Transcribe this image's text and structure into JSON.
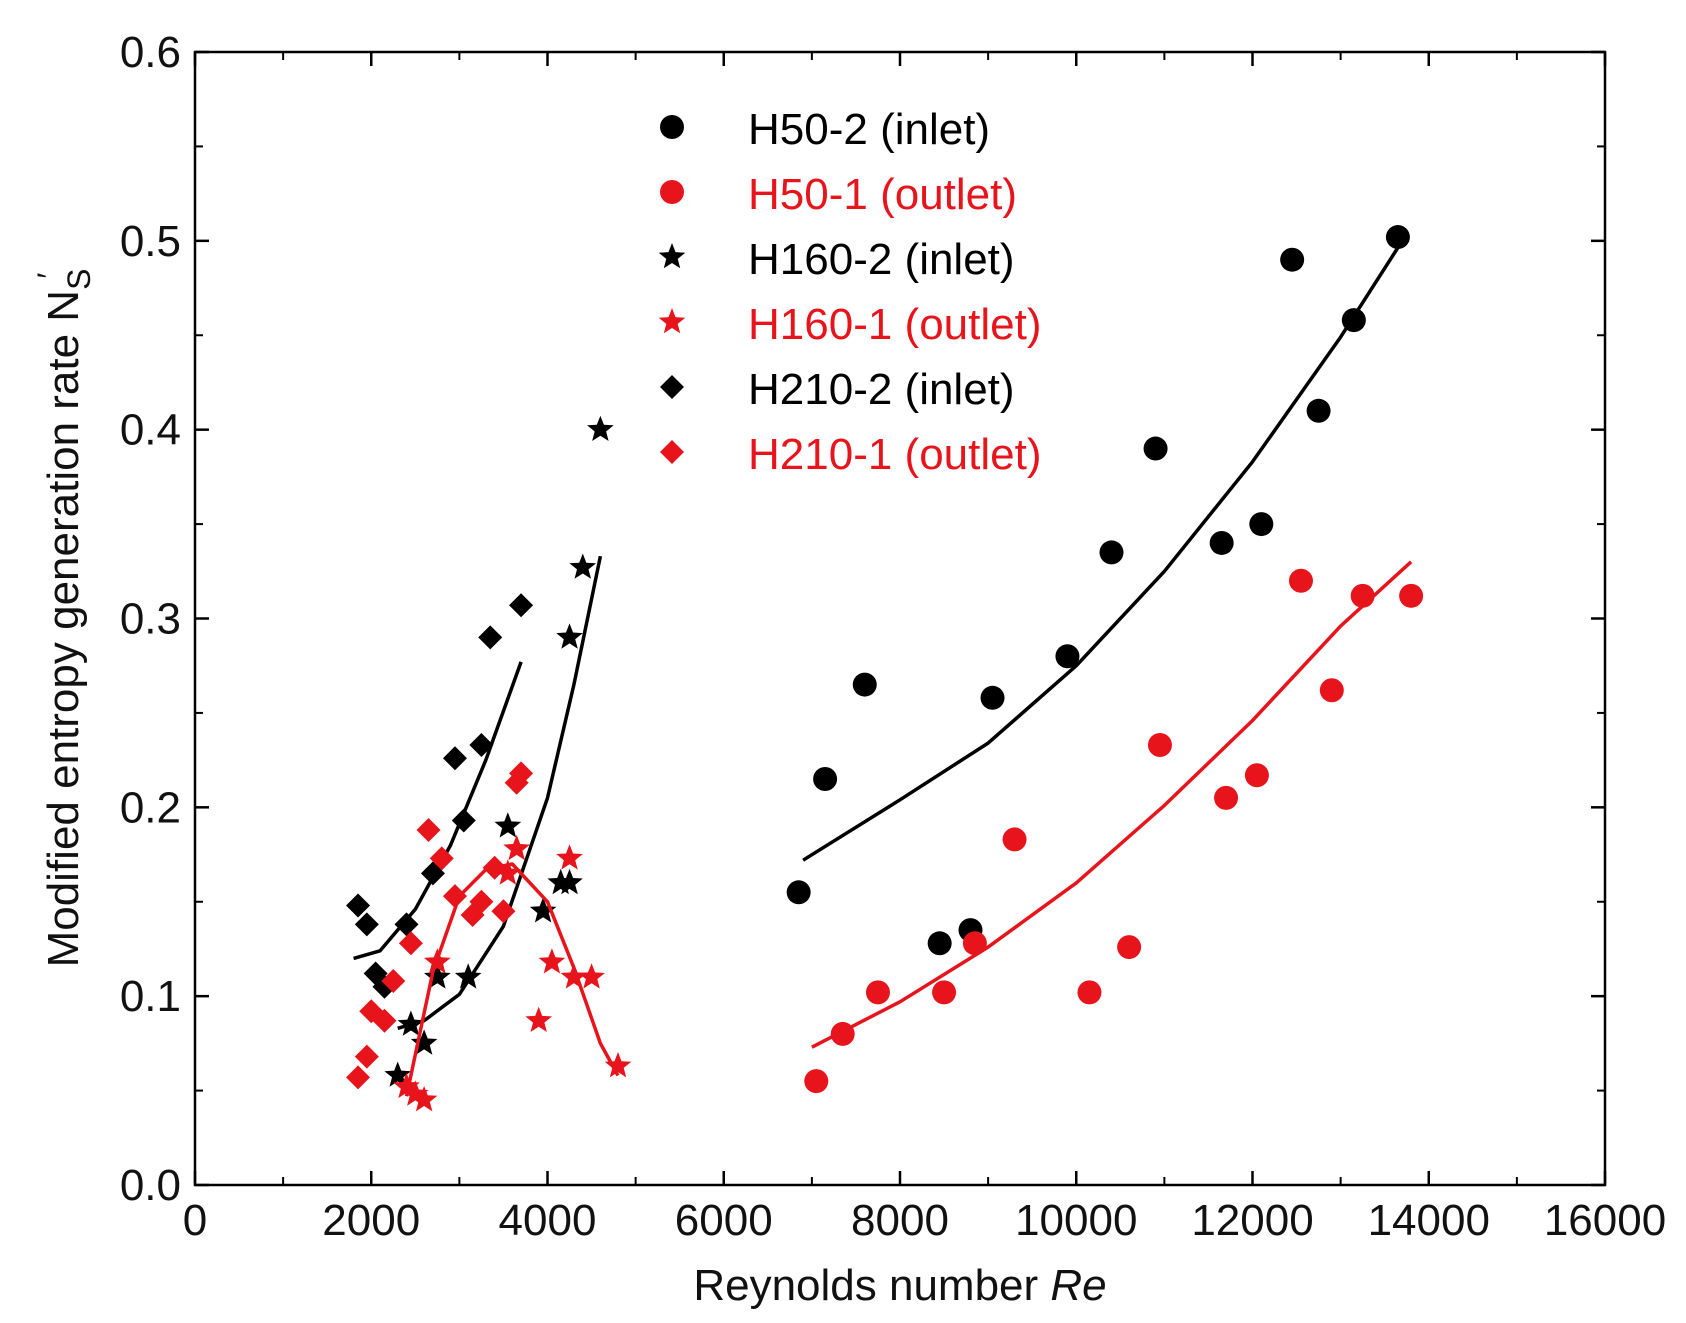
{
  "chart_data": {
    "type": "scatter",
    "xlabel": "Reynolds number ",
    "xlabel_italic": "Re",
    "ylabel": "Modified entropy generation rate N",
    "ylabel_sub": "S",
    "ylabel_prime": "′",
    "xlim": [
      0,
      16000
    ],
    "ylim": [
      0,
      0.6
    ],
    "x_ticks": [
      0,
      2000,
      4000,
      6000,
      8000,
      10000,
      12000,
      14000,
      16000
    ],
    "x_tick_labels": [
      "0",
      "2000",
      "4000",
      "6000",
      "8000",
      "10000",
      "12000",
      "14000",
      "16000"
    ],
    "y_ticks": [
      0,
      0.1,
      0.2,
      0.3,
      0.4,
      0.5,
      0.6
    ],
    "y_tick_labels": [
      "0.0",
      "0.1",
      "0.2",
      "0.3",
      "0.4",
      "0.5",
      "0.6"
    ],
    "grid": false,
    "legend_position": "top-center",
    "colors": {
      "black": "#000000",
      "red": "#e8141c"
    },
    "series": [
      {
        "name": "H50-2  (inlet)",
        "marker": "circle",
        "color": "#000000",
        "points": [
          [
            6850,
            0.155
          ],
          [
            7150,
            0.215
          ],
          [
            7600,
            0.265
          ],
          [
            8450,
            0.128
          ],
          [
            8800,
            0.135
          ],
          [
            9050,
            0.258
          ],
          [
            9900,
            0.28
          ],
          [
            10400,
            0.335
          ],
          [
            10900,
            0.39
          ],
          [
            11650,
            0.34
          ],
          [
            12100,
            0.35
          ],
          [
            12450,
            0.49
          ],
          [
            12750,
            0.41
          ],
          [
            13150,
            0.458
          ],
          [
            13650,
            0.502
          ]
        ],
        "fit": [
          [
            6900,
            0.172
          ],
          [
            8000,
            0.204
          ],
          [
            9000,
            0.234
          ],
          [
            10000,
            0.275
          ],
          [
            11000,
            0.325
          ],
          [
            12000,
            0.383
          ],
          [
            13000,
            0.449
          ],
          [
            13700,
            0.5
          ]
        ]
      },
      {
        "name": "H50-1 (outlet)",
        "marker": "circle",
        "color": "#e8141c",
        "points": [
          [
            7050,
            0.055
          ],
          [
            7350,
            0.08
          ],
          [
            7750,
            0.102
          ],
          [
            8500,
            0.102
          ],
          [
            8850,
            0.128
          ],
          [
            9300,
            0.183
          ],
          [
            10150,
            0.102
          ],
          [
            10600,
            0.126
          ],
          [
            10950,
            0.233
          ],
          [
            11700,
            0.205
          ],
          [
            12050,
            0.217
          ],
          [
            12550,
            0.32
          ],
          [
            12900,
            0.262
          ],
          [
            13250,
            0.312
          ],
          [
            13800,
            0.312
          ]
        ],
        "fit": [
          [
            7000,
            0.073
          ],
          [
            8000,
            0.097
          ],
          [
            9000,
            0.126
          ],
          [
            10000,
            0.16
          ],
          [
            11000,
            0.201
          ],
          [
            12000,
            0.246
          ],
          [
            13000,
            0.296
          ],
          [
            13800,
            0.33
          ]
        ]
      },
      {
        "name": "H160-2  (inlet)",
        "marker": "star",
        "color": "#000000",
        "points": [
          [
            2300,
            0.058
          ],
          [
            2450,
            0.085
          ],
          [
            2600,
            0.075
          ],
          [
            2750,
            0.11
          ],
          [
            3100,
            0.11
          ],
          [
            3550,
            0.19
          ],
          [
            3950,
            0.145
          ],
          [
            4150,
            0.16
          ],
          [
            4250,
            0.16
          ],
          [
            4250,
            0.29
          ],
          [
            4400,
            0.327
          ],
          [
            4600,
            0.4
          ]
        ],
        "fit": [
          [
            2300,
            0.083
          ],
          [
            2600,
            0.087
          ],
          [
            3000,
            0.101
          ],
          [
            3500,
            0.137
          ],
          [
            4000,
            0.205
          ],
          [
            4300,
            0.265
          ],
          [
            4600,
            0.333
          ]
        ]
      },
      {
        "name": "H160-1  (outlet)",
        "marker": "star",
        "color": "#e8141c",
        "points": [
          [
            2400,
            0.052
          ],
          [
            2500,
            0.048
          ],
          [
            2600,
            0.045
          ],
          [
            2750,
            0.118
          ],
          [
            3550,
            0.165
          ],
          [
            3650,
            0.178
          ],
          [
            3900,
            0.087
          ],
          [
            4050,
            0.118
          ],
          [
            4250,
            0.173
          ],
          [
            4300,
            0.11
          ],
          [
            4500,
            0.11
          ],
          [
            4800,
            0.063
          ]
        ],
        "fit": [
          [
            2400,
            0.047
          ],
          [
            2700,
            0.113
          ],
          [
            3000,
            0.153
          ],
          [
            3300,
            0.167
          ],
          [
            3600,
            0.17
          ],
          [
            4000,
            0.15
          ],
          [
            4300,
            0.115
          ],
          [
            4600,
            0.075
          ],
          [
            4800,
            0.058
          ]
        ]
      },
      {
        "name": "H210-2  (inlet)",
        "marker": "diamond",
        "color": "#000000",
        "points": [
          [
            1850,
            0.148
          ],
          [
            1950,
            0.138
          ],
          [
            2050,
            0.112
          ],
          [
            2150,
            0.105
          ],
          [
            2400,
            0.138
          ],
          [
            2700,
            0.165
          ],
          [
            2950,
            0.226
          ],
          [
            3050,
            0.193
          ],
          [
            3250,
            0.233
          ],
          [
            3350,
            0.29
          ],
          [
            3700,
            0.307
          ]
        ],
        "fit": [
          [
            1800,
            0.12
          ],
          [
            2100,
            0.124
          ],
          [
            2500,
            0.146
          ],
          [
            2900,
            0.18
          ],
          [
            3300,
            0.225
          ],
          [
            3700,
            0.277
          ]
        ]
      },
      {
        "name": "H210-1  (outlet)",
        "marker": "diamond",
        "color": "#e8141c",
        "points": [
          [
            1850,
            0.057
          ],
          [
            1950,
            0.068
          ],
          [
            2000,
            0.092
          ],
          [
            2150,
            0.087
          ],
          [
            2250,
            0.108
          ],
          [
            2450,
            0.128
          ],
          [
            2650,
            0.188
          ],
          [
            2800,
            0.173
          ],
          [
            2950,
            0.153
          ],
          [
            3150,
            0.143
          ],
          [
            3250,
            0.15
          ],
          [
            3400,
            0.168
          ],
          [
            3500,
            0.145
          ],
          [
            3650,
            0.213
          ],
          [
            3700,
            0.218
          ]
        ]
      }
    ]
  }
}
